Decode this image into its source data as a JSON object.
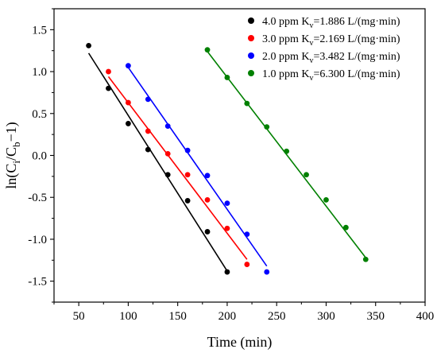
{
  "chart_data": {
    "type": "scatter",
    "xlabel": "Time (min)",
    "ylabel_parts": {
      "base": "ln(C",
      "sub1": "i",
      "mid": "/C",
      "sub2": "b",
      "tail": "−1)"
    },
    "xlim": [
      25,
      400
    ],
    "ylim": [
      -1.75,
      1.75
    ],
    "xticks": [
      50,
      100,
      150,
      200,
      250,
      300,
      350,
      400
    ],
    "yticks": [
      -1.5,
      -1.0,
      -0.5,
      0.0,
      0.5,
      1.0,
      1.5
    ],
    "xtick_labels": [
      "50",
      "100",
      "150",
      "200",
      "250",
      "300",
      "350",
      "400"
    ],
    "ytick_labels": [
      "-1.5",
      "-1.0",
      "-0.5",
      "0.0",
      "0.5",
      "1.0",
      "1.5"
    ],
    "grid": false,
    "legend_position": "top-right",
    "series": [
      {
        "legend_parts": {
          "pre": "4.0 ppm K",
          "sub": "v",
          "post": "=1.886 L/(mg·min)"
        },
        "color": "#000000",
        "x": [
          60,
          80,
          100,
          120,
          140,
          160,
          180,
          200
        ],
        "y": [
          1.31,
          0.8,
          0.38,
          0.07,
          -0.23,
          -0.54,
          -0.91,
          -1.39
        ],
        "fit": {
          "x": [
            60,
            200
          ],
          "y": [
            1.22,
            -1.38
          ]
        }
      },
      {
        "legend_parts": {
          "pre": "3.0 ppm K",
          "sub": "v",
          "post": "=2.169 L/(mg·min)"
        },
        "color": "#ff0000",
        "x": [
          80,
          100,
          120,
          140,
          160,
          180,
          200,
          220
        ],
        "y": [
          1.0,
          0.63,
          0.29,
          0.02,
          -0.23,
          -0.53,
          -0.87,
          -1.3
        ],
        "fit": {
          "x": [
            80,
            220
          ],
          "y": [
            0.94,
            -1.24
          ]
        }
      },
      {
        "legend_parts": {
          "pre": "2.0 ppm K",
          "sub": "v",
          "post": "=3.482 L/(mg·min)"
        },
        "color": "#0000ff",
        "x": [
          100,
          120,
          140,
          160,
          180,
          200,
          220,
          240
        ],
        "y": [
          1.07,
          0.67,
          0.35,
          0.06,
          -0.24,
          -0.57,
          -0.94,
          -1.39
        ],
        "fit": {
          "x": [
            100,
            240
          ],
          "y": [
            1.05,
            -1.32
          ]
        }
      },
      {
        "legend_parts": {
          "pre": "1.0 ppm K",
          "sub": "v",
          "post": "=6.300 L/(mg·min)"
        },
        "color": "#008000",
        "x": [
          180,
          200,
          220,
          240,
          260,
          280,
          300,
          320,
          340
        ],
        "y": [
          1.26,
          0.93,
          0.62,
          0.34,
          0.05,
          -0.23,
          -0.53,
          -0.86,
          -1.24
        ],
        "fit": {
          "x": [
            180,
            340
          ],
          "y": [
            1.24,
            -1.22
          ]
        }
      }
    ]
  }
}
